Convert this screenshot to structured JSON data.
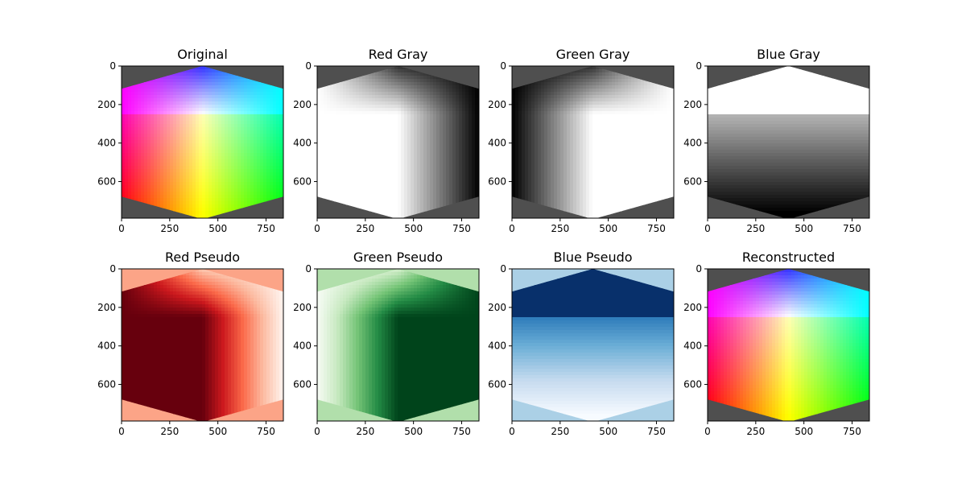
{
  "figure": {
    "background": "#ffffff",
    "outside_color": "#4f4f4f"
  },
  "chart_data": [
    {
      "type": "heatmap",
      "title": "Original",
      "channel": "rgb",
      "xlim": [
        0,
        840
      ],
      "ylim": [
        0,
        790
      ],
      "xticks": [
        0,
        250,
        500,
        750
      ],
      "yticks": [
        0,
        200,
        400,
        600
      ],
      "outside_color": "#4f4f4f"
    },
    {
      "type": "heatmap",
      "title": "Red Gray",
      "channel": "r",
      "colormap": "gray",
      "xlim": [
        0,
        840
      ],
      "ylim": [
        0,
        790
      ],
      "xticks": [
        0,
        250,
        500,
        750
      ],
      "yticks": [
        0,
        200,
        400,
        600
      ],
      "outside_color": "#4f4f4f"
    },
    {
      "type": "heatmap",
      "title": "Green Gray",
      "channel": "g",
      "colormap": "gray",
      "xlim": [
        0,
        840
      ],
      "ylim": [
        0,
        790
      ],
      "xticks": [
        0,
        250,
        500,
        750
      ],
      "yticks": [
        0,
        200,
        400,
        600
      ],
      "outside_color": "#4f4f4f"
    },
    {
      "type": "heatmap",
      "title": "Blue Gray",
      "channel": "b",
      "colormap": "gray",
      "xlim": [
        0,
        840
      ],
      "ylim": [
        0,
        790
      ],
      "xticks": [
        0,
        250,
        500,
        750
      ],
      "yticks": [
        0,
        200,
        400,
        600
      ],
      "outside_color": "#4f4f4f"
    },
    {
      "type": "heatmap",
      "title": "Red Pseudo",
      "channel": "r",
      "colormap": "Reds",
      "xlim": [
        0,
        840
      ],
      "ylim": [
        0,
        790
      ],
      "xticks": [
        0,
        250,
        500,
        750
      ],
      "yticks": [
        0,
        200,
        400,
        600
      ],
      "outside_color": "#fca487"
    },
    {
      "type": "heatmap",
      "title": "Green Pseudo",
      "channel": "g",
      "colormap": "Greens",
      "xlim": [
        0,
        840
      ],
      "ylim": [
        0,
        790
      ],
      "xticks": [
        0,
        250,
        500,
        750
      ],
      "yticks": [
        0,
        200,
        400,
        600
      ],
      "outside_color": "#b1dfab"
    },
    {
      "type": "heatmap",
      "title": "Blue Pseudo",
      "channel": "b",
      "colormap": "Blues",
      "xlim": [
        0,
        840
      ],
      "ylim": [
        0,
        790
      ],
      "xticks": [
        0,
        250,
        500,
        750
      ],
      "yticks": [
        0,
        200,
        400,
        600
      ],
      "outside_color": "#abd0e6"
    },
    {
      "type": "heatmap",
      "title": "Reconstructed",
      "channel": "rgb",
      "xlim": [
        0,
        840
      ],
      "ylim": [
        0,
        790
      ],
      "xticks": [
        0,
        250,
        500,
        750
      ],
      "yticks": [
        0,
        200,
        400,
        600
      ],
      "outside_color": "#4f4f4f"
    }
  ]
}
